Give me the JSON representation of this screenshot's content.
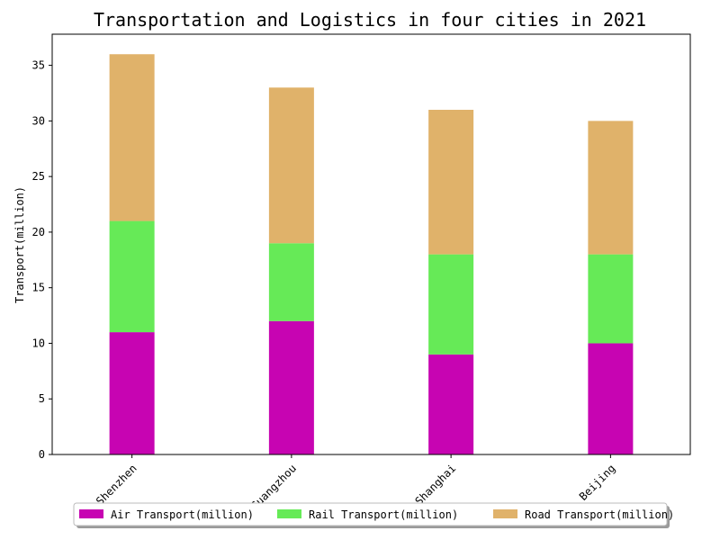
{
  "chart_data": {
    "type": "bar",
    "stacked": true,
    "title": "Transportation and Logistics in four cities in 2021",
    "xlabel": "",
    "ylabel": "Transport(million)",
    "categories": [
      "Shenzhen",
      "Guangzhou",
      "Shanghai",
      "Beijing"
    ],
    "series": [
      {
        "name": "Air Transport(million)",
        "color": "#c704b2",
        "values": [
          11,
          12,
          9,
          10
        ]
      },
      {
        "name": "Rail Transport(million)",
        "color": "#66ea57",
        "values": [
          10,
          7,
          9,
          8
        ]
      },
      {
        "name": "Road Transport(million)",
        "color": "#e0b26a",
        "values": [
          15,
          14,
          13,
          12
        ]
      }
    ],
    "ylim": [
      0,
      37.8
    ],
    "yticks": [
      0,
      5,
      10,
      15,
      20,
      25,
      30,
      35
    ],
    "grid": false,
    "legend_position": "bottom-center"
  }
}
